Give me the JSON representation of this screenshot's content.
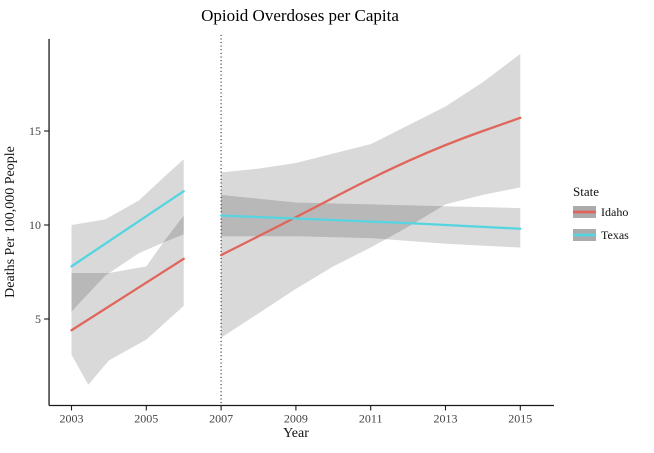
{
  "chart_data": {
    "type": "line",
    "title": "Opioid Overdoses per Capita",
    "xlabel": "Year",
    "ylabel": "Deaths Per 100,000 People",
    "legend_title": "State",
    "legend_position": "right",
    "grid": false,
    "xlim": [
      2002.4,
      2015.9
    ],
    "ylim": [
      0.4,
      19.9
    ],
    "x_ticks": [
      2003,
      2005,
      2007,
      2009,
      2011,
      2013,
      2015
    ],
    "y_ticks": [
      5,
      10,
      15
    ],
    "vline": {
      "x": 2007,
      "style": "dotted",
      "color": "#111111"
    },
    "band_fill": "#000000",
    "band_opacity": 0.15,
    "legend_swatch_color": "#ABABAB",
    "axis_color": "#1a1a1a",
    "series": [
      {
        "name": "Idaho",
        "color": "#E0655B",
        "segments": [
          {
            "line": {
              "x": [
                2003,
                2006
              ],
              "y": [
                4.4,
                8.2
              ]
            },
            "band": {
              "x": [
                2003,
                2003.45,
                2004,
                2005,
                2005.5,
                2006
              ],
              "upper": [
                7.45,
                7.45,
                7.45,
                7.8,
                9.2,
                10.5
              ],
              "lower": [
                3.1,
                1.5,
                2.8,
                3.9,
                4.8,
                5.7
              ]
            }
          },
          {
            "line": {
              "x": [
                2007,
                2009,
                2011,
                2013,
                2015
              ],
              "y": [
                8.4,
                10.4,
                12.5,
                14.3,
                15.7
              ]
            },
            "band": {
              "x": [
                2007,
                2008,
                2009,
                2010,
                2011,
                2012,
                2013,
                2014,
                2015
              ],
              "upper": [
                12.8,
                13.0,
                13.3,
                13.8,
                14.3,
                15.3,
                16.3,
                17.6,
                19.1
              ],
              "lower": [
                4.0,
                5.3,
                6.6,
                7.8,
                8.8,
                9.9,
                11.1,
                11.6,
                12.0
              ]
            }
          }
        ]
      },
      {
        "name": "Texas",
        "color": "#55D5E0",
        "segments": [
          {
            "line": {
              "x": [
                2003,
                2006
              ],
              "y": [
                7.8,
                11.8
              ]
            },
            "band": {
              "x": [
                2003,
                2003.9,
                2004.8,
                2005.5,
                2006
              ],
              "upper": [
                10.0,
                10.3,
                11.3,
                12.6,
                13.5
              ],
              "lower": [
                5.4,
                7.3,
                8.5,
                9.1,
                9.5
              ]
            }
          },
          {
            "line": {
              "x": [
                2007,
                2011,
                2015
              ],
              "y": [
                10.5,
                10.2,
                9.8
              ]
            },
            "band": {
              "x": [
                2007,
                2009,
                2011,
                2013,
                2015
              ],
              "upper": [
                11.6,
                11.2,
                11.1,
                11.0,
                10.9
              ],
              "lower": [
                9.4,
                9.4,
                9.3,
                9.0,
                8.8
              ]
            }
          }
        ]
      }
    ]
  }
}
